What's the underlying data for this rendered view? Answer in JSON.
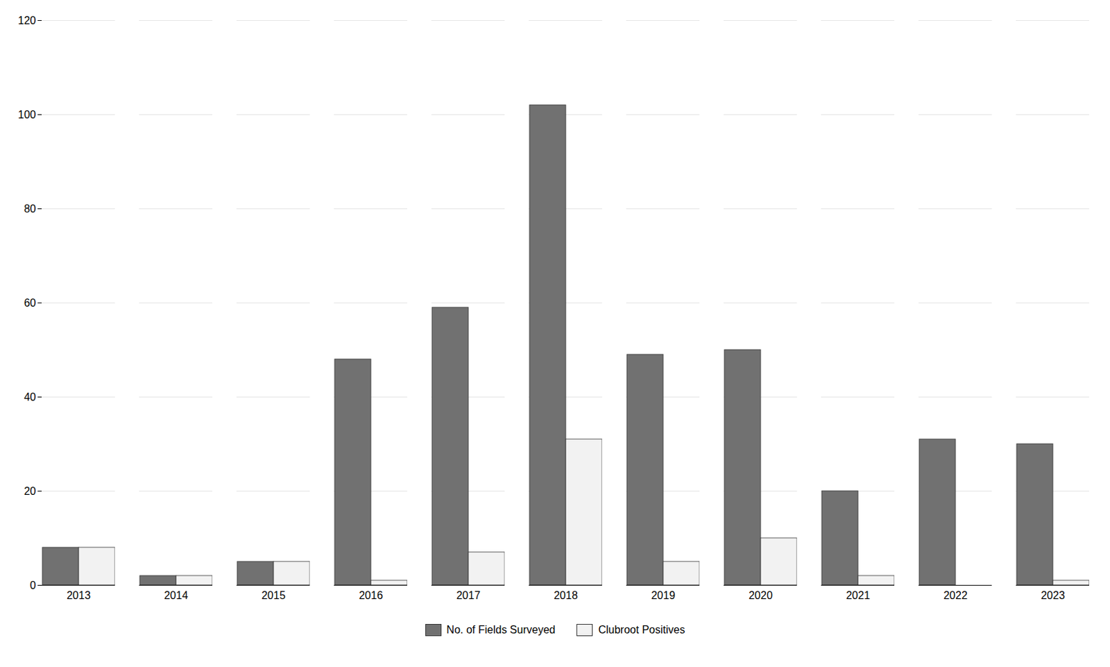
{
  "chart_data": {
    "type": "bar",
    "categories": [
      "2013",
      "2014",
      "2015",
      "2016",
      "2017",
      "2018",
      "2019",
      "2020",
      "2021",
      "2022",
      "2023"
    ],
    "series": [
      {
        "name": "No. of Fields Surveyed",
        "color": "#717171",
        "values": [
          8,
          2,
          5,
          48,
          59,
          102,
          49,
          50,
          20,
          31,
          30
        ]
      },
      {
        "name": "Clubroot Positives",
        "color": "#f2f2f2",
        "values": [
          8,
          2,
          5,
          1,
          7,
          31,
          5,
          10,
          2,
          0,
          1
        ]
      }
    ],
    "ylim": [
      0,
      120
    ],
    "yticks": [
      0,
      20,
      40,
      60,
      80,
      100,
      120
    ],
    "grid": true,
    "legend": "bottom"
  }
}
